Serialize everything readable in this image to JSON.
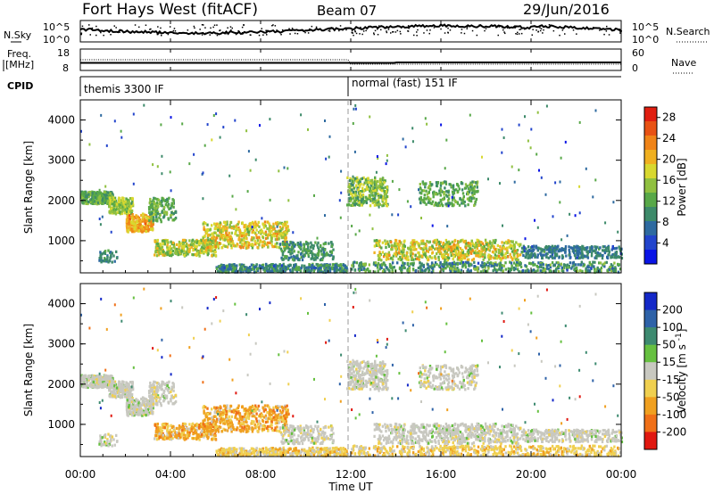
{
  "header": {
    "title": "Fort Hays West (fitACF)",
    "beam": "Beam 07",
    "date": "29/Jun/2016"
  },
  "top_panels": {
    "nsky_label": "N.Sky",
    "nsearch_label": "N.Search",
    "nsky_ticks": [
      "10^5",
      "10^0"
    ],
    "nsky_right_ticks": [
      "10^5",
      "10^0"
    ],
    "freq_label_line1": "Freq.",
    "freq_label_line2": "[MHz]",
    "freq_ticks": [
      "18",
      "8"
    ],
    "nave_label": "Nave",
    "nave_ticks": [
      "60",
      "0"
    ],
    "cpid_label": "CPID",
    "cpid_segments": [
      "themis 3300 IF",
      "normal (fast) 151 IF"
    ]
  },
  "chart_data": [
    {
      "type": "heatmap",
      "name": "power-panel",
      "ylabel": "Slant Range [km]",
      "xlabel": "",
      "ylim": [
        200,
        4500
      ],
      "y_ticks": [
        1000,
        2000,
        3000,
        4000
      ],
      "colorbar": {
        "label": "Power [dB]",
        "ticks": [
          "4",
          "8",
          "12",
          "16",
          "20",
          "24",
          "28"
        ],
        "colors": [
          "#0a14e6",
          "#2244cc",
          "#2e6aa0",
          "#3d8a6a",
          "#58a848",
          "#90c040",
          "#d8d830",
          "#f0b020",
          "#f08418",
          "#e85214",
          "#e01e10"
        ]
      }
    },
    {
      "type": "heatmap",
      "name": "velocity-panel",
      "ylabel": "Slant Range [km]",
      "xlabel": "Time UT",
      "ylim": [
        200,
        4500
      ],
      "y_ticks": [
        1000,
        2000,
        3000,
        4000
      ],
      "x_ticks": [
        "00:00",
        "04:00",
        "08:00",
        "12:00",
        "16:00",
        "20:00",
        "00:00"
      ],
      "colorbar": {
        "label": "Velocity [m s^-1]",
        "ticks": [
          "200",
          "100",
          "50",
          "15",
          "-15",
          "-50",
          "-100",
          "-200"
        ],
        "colors": [
          "#1428c8",
          "#2e62a8",
          "#3d8a70",
          "#66c040",
          "#c8c8c0",
          "#f0d050",
          "#f0a020",
          "#f07018",
          "#e01810"
        ]
      }
    }
  ]
}
